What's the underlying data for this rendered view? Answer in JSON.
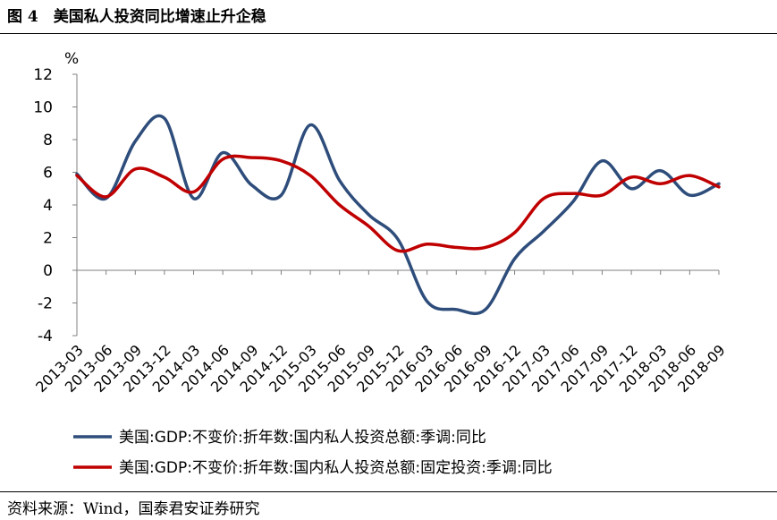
{
  "figure": {
    "title": "图 4　美国私人投资同比增速止升企稳",
    "source": "资料来源：Wind，国泰君安证券研究"
  },
  "chart_data": {
    "type": "line",
    "title": "图 4　美国私人投资同比增速止升企稳",
    "xlabel": "",
    "ylabel": "%",
    "ylim": [
      -4,
      12
    ],
    "yticks": [
      -4,
      -2,
      0,
      2,
      4,
      6,
      8,
      10,
      12
    ],
    "grid": false,
    "legend_position": "bottom",
    "categories": [
      "2013-03",
      "2013-06",
      "2013-09",
      "2013-12",
      "2014-03",
      "2014-06",
      "2014-09",
      "2014-12",
      "2015-03",
      "2015-06",
      "2015-09",
      "2015-12",
      "2016-03",
      "2016-06",
      "2016-09",
      "2016-12",
      "2017-03",
      "2017-06",
      "2017-09",
      "2017-12",
      "2018-03",
      "2018-06",
      "2018-09"
    ],
    "series": [
      {
        "name": "美国:GDP:不变价:折年数:国内私人投资总额:季调:同比",
        "color": "#2e4d7b",
        "values": [
          5.9,
          4.4,
          7.9,
          9.3,
          4.4,
          7.2,
          5.2,
          4.6,
          8.9,
          5.5,
          3.4,
          1.9,
          -1.9,
          -2.4,
          -2.4,
          0.7,
          2.4,
          4.2,
          6.7,
          5.0,
          6.1,
          4.6,
          5.3
        ]
      },
      {
        "name": "美国:GDP:不变价:折年数:国内私人投资总额:固定投资:季调:同比",
        "color": "#c00000",
        "values": [
          5.8,
          4.5,
          6.2,
          5.7,
          4.8,
          6.8,
          6.9,
          6.7,
          5.8,
          4.0,
          2.7,
          1.2,
          1.6,
          1.4,
          1.4,
          2.3,
          4.4,
          4.7,
          4.6,
          5.7,
          5.3,
          5.8,
          5.1
        ]
      }
    ]
  }
}
